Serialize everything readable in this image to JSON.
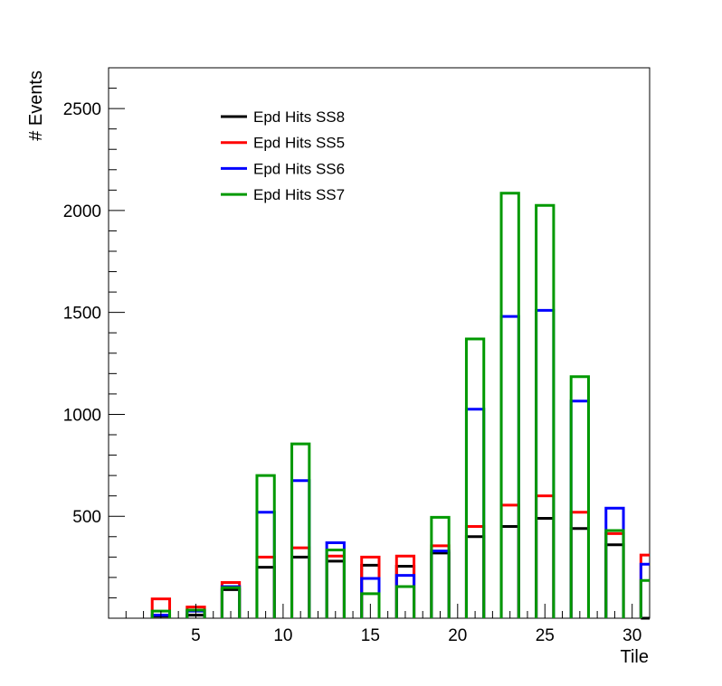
{
  "chart_data": {
    "type": "bar",
    "title": "",
    "xlabel": "Tile",
    "ylabel": "# Events",
    "xlim": [
      0,
      31
    ],
    "ylim": [
      0,
      2700
    ],
    "x_ticks": [
      5,
      10,
      15,
      20,
      25,
      30
    ],
    "y_ticks": [
      500,
      1000,
      1500,
      2000,
      2500
    ],
    "grid": false,
    "legend_position": "top-left",
    "bar_width": 1,
    "x": [
      3,
      5,
      7,
      9,
      11,
      13,
      15,
      17,
      19,
      21,
      23,
      25,
      27,
      29,
      31
    ],
    "series": [
      {
        "name": "Epd Hits SS8",
        "color": "#000000",
        "values": [
          10,
          15,
          140,
          250,
          300,
          280,
          260,
          255,
          320,
          400,
          450,
          490,
          440,
          360,
          0
        ]
      },
      {
        "name": "Epd Hits SS5",
        "color": "#ff0000",
        "values": [
          95,
          55,
          175,
          300,
          345,
          305,
          300,
          305,
          355,
          450,
          555,
          600,
          520,
          415,
          310
        ]
      },
      {
        "name": "Epd Hits SS6",
        "color": "#0000ff",
        "values": [
          15,
          35,
          155,
          520,
          675,
          370,
          195,
          210,
          330,
          1025,
          1480,
          1510,
          1065,
          540,
          265
        ]
      },
      {
        "name": "Epd Hits SS7",
        "color": "#009900",
        "values": [
          35,
          40,
          150,
          700,
          855,
          335,
          120,
          155,
          495,
          1370,
          2085,
          2025,
          1185,
          430,
          185
        ]
      }
    ]
  }
}
